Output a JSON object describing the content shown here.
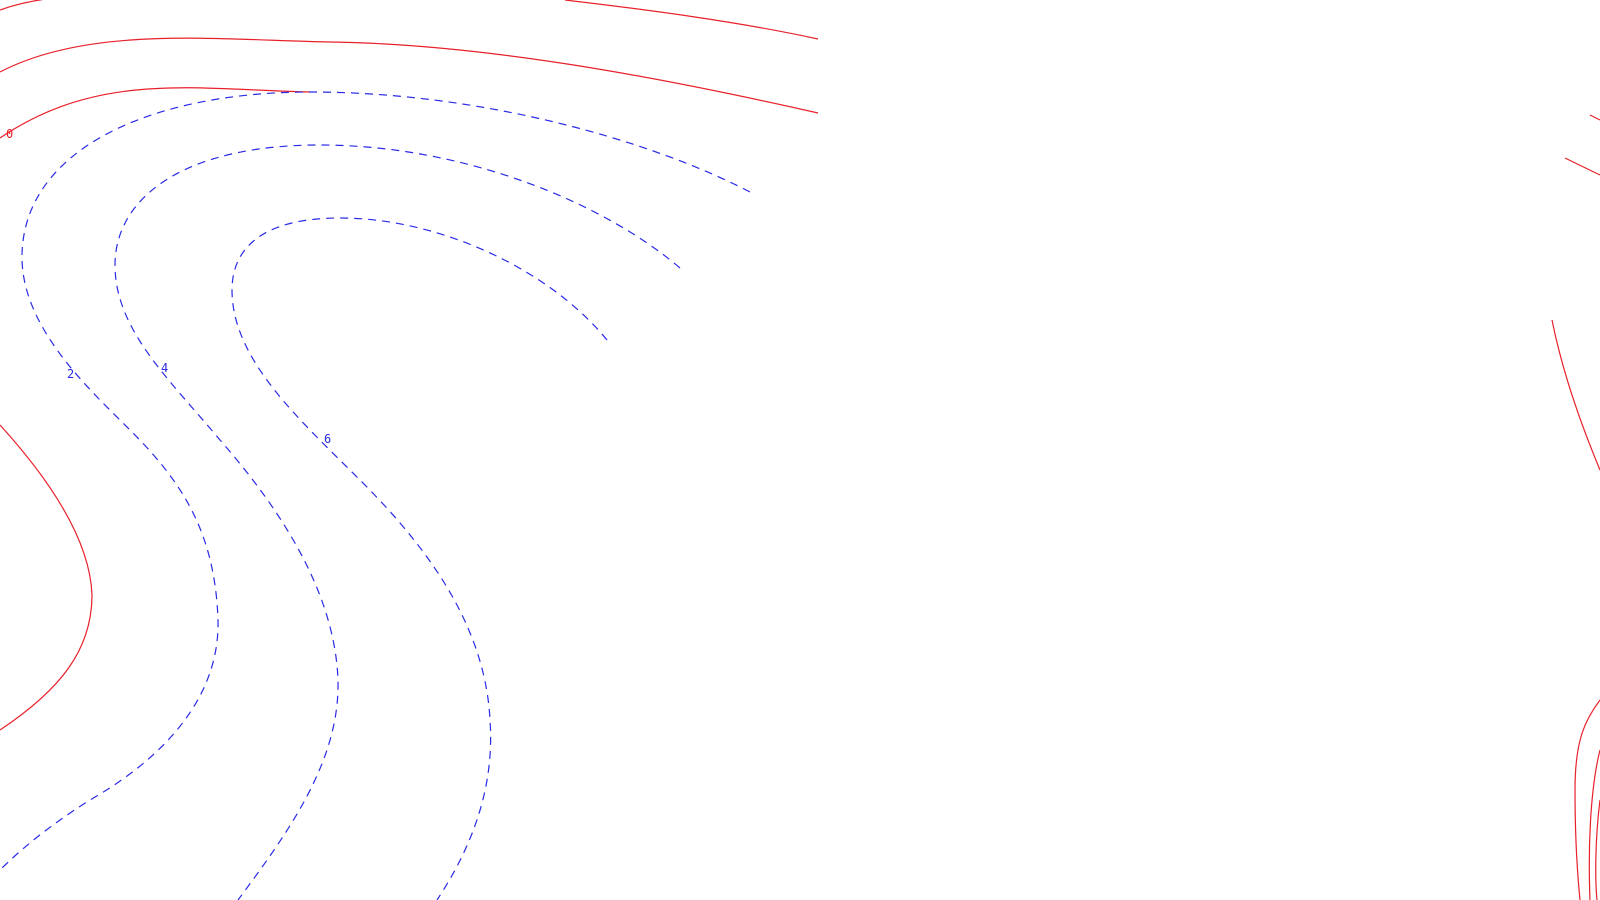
{
  "chart_data": {
    "type": "contour",
    "title": "",
    "xlabel": "",
    "ylabel": "",
    "grid": false,
    "legend": "none",
    "colors": {
      "positive": "#e8202a",
      "negative": "#2a2ae6"
    },
    "levels": [
      {
        "value": 0,
        "label": "0",
        "style": "solid",
        "color_key": "positive"
      },
      {
        "value": 2,
        "label": "2",
        "style": "dashed",
        "color_key": "negative"
      },
      {
        "value": 4,
        "label": "4",
        "style": "dashed",
        "color_key": "negative"
      },
      {
        "value": 6,
        "label": "6",
        "style": "dashed",
        "color_key": "negative"
      }
    ]
  }
}
